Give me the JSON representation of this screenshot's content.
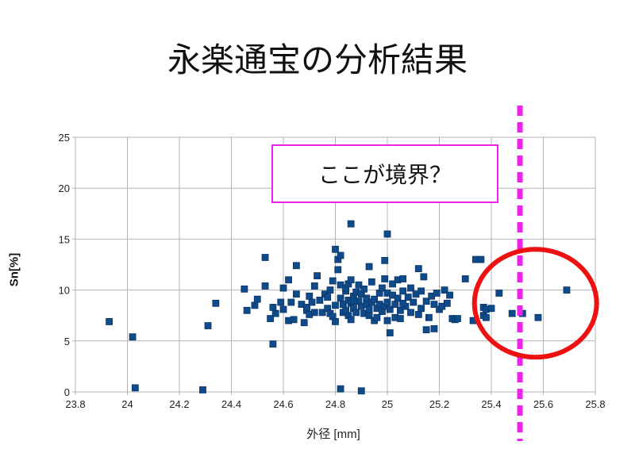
{
  "slide": {
    "title": "永楽通宝の分析結果",
    "callout": "ここが境界？"
  },
  "colors": {
    "marker": "#0f4a8a",
    "grid": "#b3b3b3",
    "divider_line": "#ee22ee",
    "highlight_circle": "#ee1111"
  },
  "chart_data": {
    "type": "scatter",
    "xlabel": "外径 [mm]",
    "ylabel": "Sn[%]",
    "xlim": [
      23.8,
      25.8
    ],
    "ylim": [
      0,
      25
    ],
    "xticks": [
      "23.8",
      "24",
      "24.2",
      "24.4",
      "24.6",
      "24.8",
      "25",
      "25.2",
      "25.4",
      "25.6",
      "25.8"
    ],
    "yticks": [
      "0",
      "5",
      "10",
      "15",
      "20",
      "25"
    ],
    "grid": true,
    "annotations": {
      "boundary_x": 25.51,
      "highlight_circle_center": [
        25.57,
        8.7
      ]
    },
    "points": [
      [
        23.93,
        6.9
      ],
      [
        24.02,
        5.4
      ],
      [
        24.03,
        0.4
      ],
      [
        24.29,
        0.2
      ],
      [
        24.31,
        6.5
      ],
      [
        24.34,
        8.7
      ],
      [
        24.45,
        10.1
      ],
      [
        24.46,
        8.0
      ],
      [
        24.49,
        8.5
      ],
      [
        24.5,
        9.1
      ],
      [
        24.53,
        13.2
      ],
      [
        24.53,
        10.4
      ],
      [
        24.55,
        7.2
      ],
      [
        24.56,
        8.3
      ],
      [
        24.56,
        4.7
      ],
      [
        24.57,
        7.7
      ],
      [
        24.59,
        8.8
      ],
      [
        24.6,
        8.1
      ],
      [
        24.6,
        10.2
      ],
      [
        24.62,
        11.0
      ],
      [
        24.62,
        7.0
      ],
      [
        24.63,
        8.8
      ],
      [
        24.64,
        7.1
      ],
      [
        24.65,
        12.4
      ],
      [
        24.65,
        9.6
      ],
      [
        24.67,
        8.6
      ],
      [
        24.68,
        6.8
      ],
      [
        24.69,
        8.0
      ],
      [
        24.69,
        8.3
      ],
      [
        24.7,
        9.4
      ],
      [
        24.7,
        7.6
      ],
      [
        24.71,
        8.8
      ],
      [
        24.72,
        10.4
      ],
      [
        24.72,
        7.8
      ],
      [
        24.73,
        11.4
      ],
      [
        24.74,
        9.0
      ],
      [
        24.75,
        7.8
      ],
      [
        24.76,
        9.6
      ],
      [
        24.77,
        8.2
      ],
      [
        24.77,
        9.3
      ],
      [
        24.78,
        7.7
      ],
      [
        24.78,
        10.0
      ],
      [
        24.79,
        7.4
      ],
      [
        24.79,
        10.9
      ],
      [
        24.8,
        6.9
      ],
      [
        24.8,
        8.5
      ],
      [
        24.8,
        14.0
      ],
      [
        24.81,
        13.0
      ],
      [
        24.81,
        12.0
      ],
      [
        24.82,
        13.4
      ],
      [
        24.82,
        10.5
      ],
      [
        24.82,
        9.2
      ],
      [
        24.83,
        7.8
      ],
      [
        24.83,
        8.6
      ],
      [
        24.84,
        9.9
      ],
      [
        24.84,
        10.2
      ],
      [
        24.85,
        7.5
      ],
      [
        24.85,
        9.0
      ],
      [
        24.85,
        10.6
      ],
      [
        24.86,
        11.0
      ],
      [
        24.86,
        7.1
      ],
      [
        24.86,
        8.7
      ],
      [
        24.86,
        16.5
      ],
      [
        24.87,
        9.4
      ],
      [
        24.87,
        8.2
      ],
      [
        24.88,
        9.8
      ],
      [
        24.88,
        7.8
      ],
      [
        24.89,
        8.9
      ],
      [
        24.89,
        10.5
      ],
      [
        24.9,
        8.4
      ],
      [
        24.9,
        9.6
      ],
      [
        24.91,
        7.7
      ],
      [
        24.91,
        10.1
      ],
      [
        24.92,
        8.6
      ],
      [
        24.92,
        9.2
      ],
      [
        24.93,
        12.3
      ],
      [
        24.93,
        7.5
      ],
      [
        24.94,
        8.8
      ],
      [
        24.94,
        10.8
      ],
      [
        24.95,
        7.0
      ],
      [
        24.95,
        9.1
      ],
      [
        24.96,
        8.2
      ],
      [
        24.97,
        9.7
      ],
      [
        24.97,
        8.6
      ],
      [
        24.98,
        7.9
      ],
      [
        24.98,
        10.2
      ],
      [
        24.99,
        8.4
      ],
      [
        24.99,
        11.1
      ],
      [
        24.99,
        12.9
      ],
      [
        25.0,
        7.0
      ],
      [
        25.0,
        8.8
      ],
      [
        25.0,
        15.5
      ],
      [
        25.0,
        9.7
      ],
      [
        25.01,
        5.8
      ],
      [
        25.01,
        8.1
      ],
      [
        25.02,
        9.5
      ],
      [
        25.02,
        10.6
      ],
      [
        25.03,
        7.3
      ],
      [
        25.03,
        8.6
      ],
      [
        25.04,
        11.0
      ],
      [
        25.04,
        9.2
      ],
      [
        25.05,
        8.0
      ],
      [
        25.05,
        7.2
      ],
      [
        25.06,
        9.9
      ],
      [
        25.06,
        11.1
      ],
      [
        25.07,
        8.4
      ],
      [
        25.08,
        9.3
      ],
      [
        25.09,
        7.8
      ],
      [
        25.09,
        10.2
      ],
      [
        25.1,
        8.8
      ],
      [
        25.11,
        9.6
      ],
      [
        25.12,
        12.1
      ],
      [
        25.12,
        7.6
      ],
      [
        25.13,
        8.2
      ],
      [
        25.13,
        9.9
      ],
      [
        25.14,
        11.3
      ],
      [
        25.15,
        6.1
      ],
      [
        25.15,
        8.9
      ],
      [
        25.16,
        7.3
      ],
      [
        25.17,
        9.4
      ],
      [
        25.18,
        8.6
      ],
      [
        25.18,
        6.2
      ],
      [
        25.19,
        9.7
      ],
      [
        25.2,
        8.1
      ],
      [
        25.21,
        8.4
      ],
      [
        25.22,
        10.0
      ],
      [
        25.23,
        8.7
      ],
      [
        25.24,
        9.5
      ],
      [
        25.25,
        7.2
      ],
      [
        25.26,
        7.1
      ],
      [
        25.27,
        7.2
      ],
      [
        25.3,
        11.1
      ],
      [
        25.33,
        7.0
      ],
      [
        25.34,
        13.0
      ],
      [
        25.36,
        13.0
      ],
      [
        25.37,
        7.5
      ],
      [
        25.37,
        8.3
      ],
      [
        25.38,
        8.1
      ],
      [
        25.38,
        7.3
      ],
      [
        25.4,
        8.2
      ],
      [
        25.43,
        9.7
      ],
      [
        25.48,
        7.7
      ],
      [
        25.52,
        7.7
      ],
      [
        25.58,
        7.3
      ],
      [
        25.69,
        10.0
      ],
      [
        24.82,
        0.3
      ],
      [
        24.9,
        0.1
      ],
      [
        24.87,
        8.9
      ],
      [
        24.93,
        8.1
      ],
      [
        25.06,
        8.7
      ],
      [
        24.96,
        7.3
      ],
      [
        24.84,
        8.0
      ]
    ]
  }
}
